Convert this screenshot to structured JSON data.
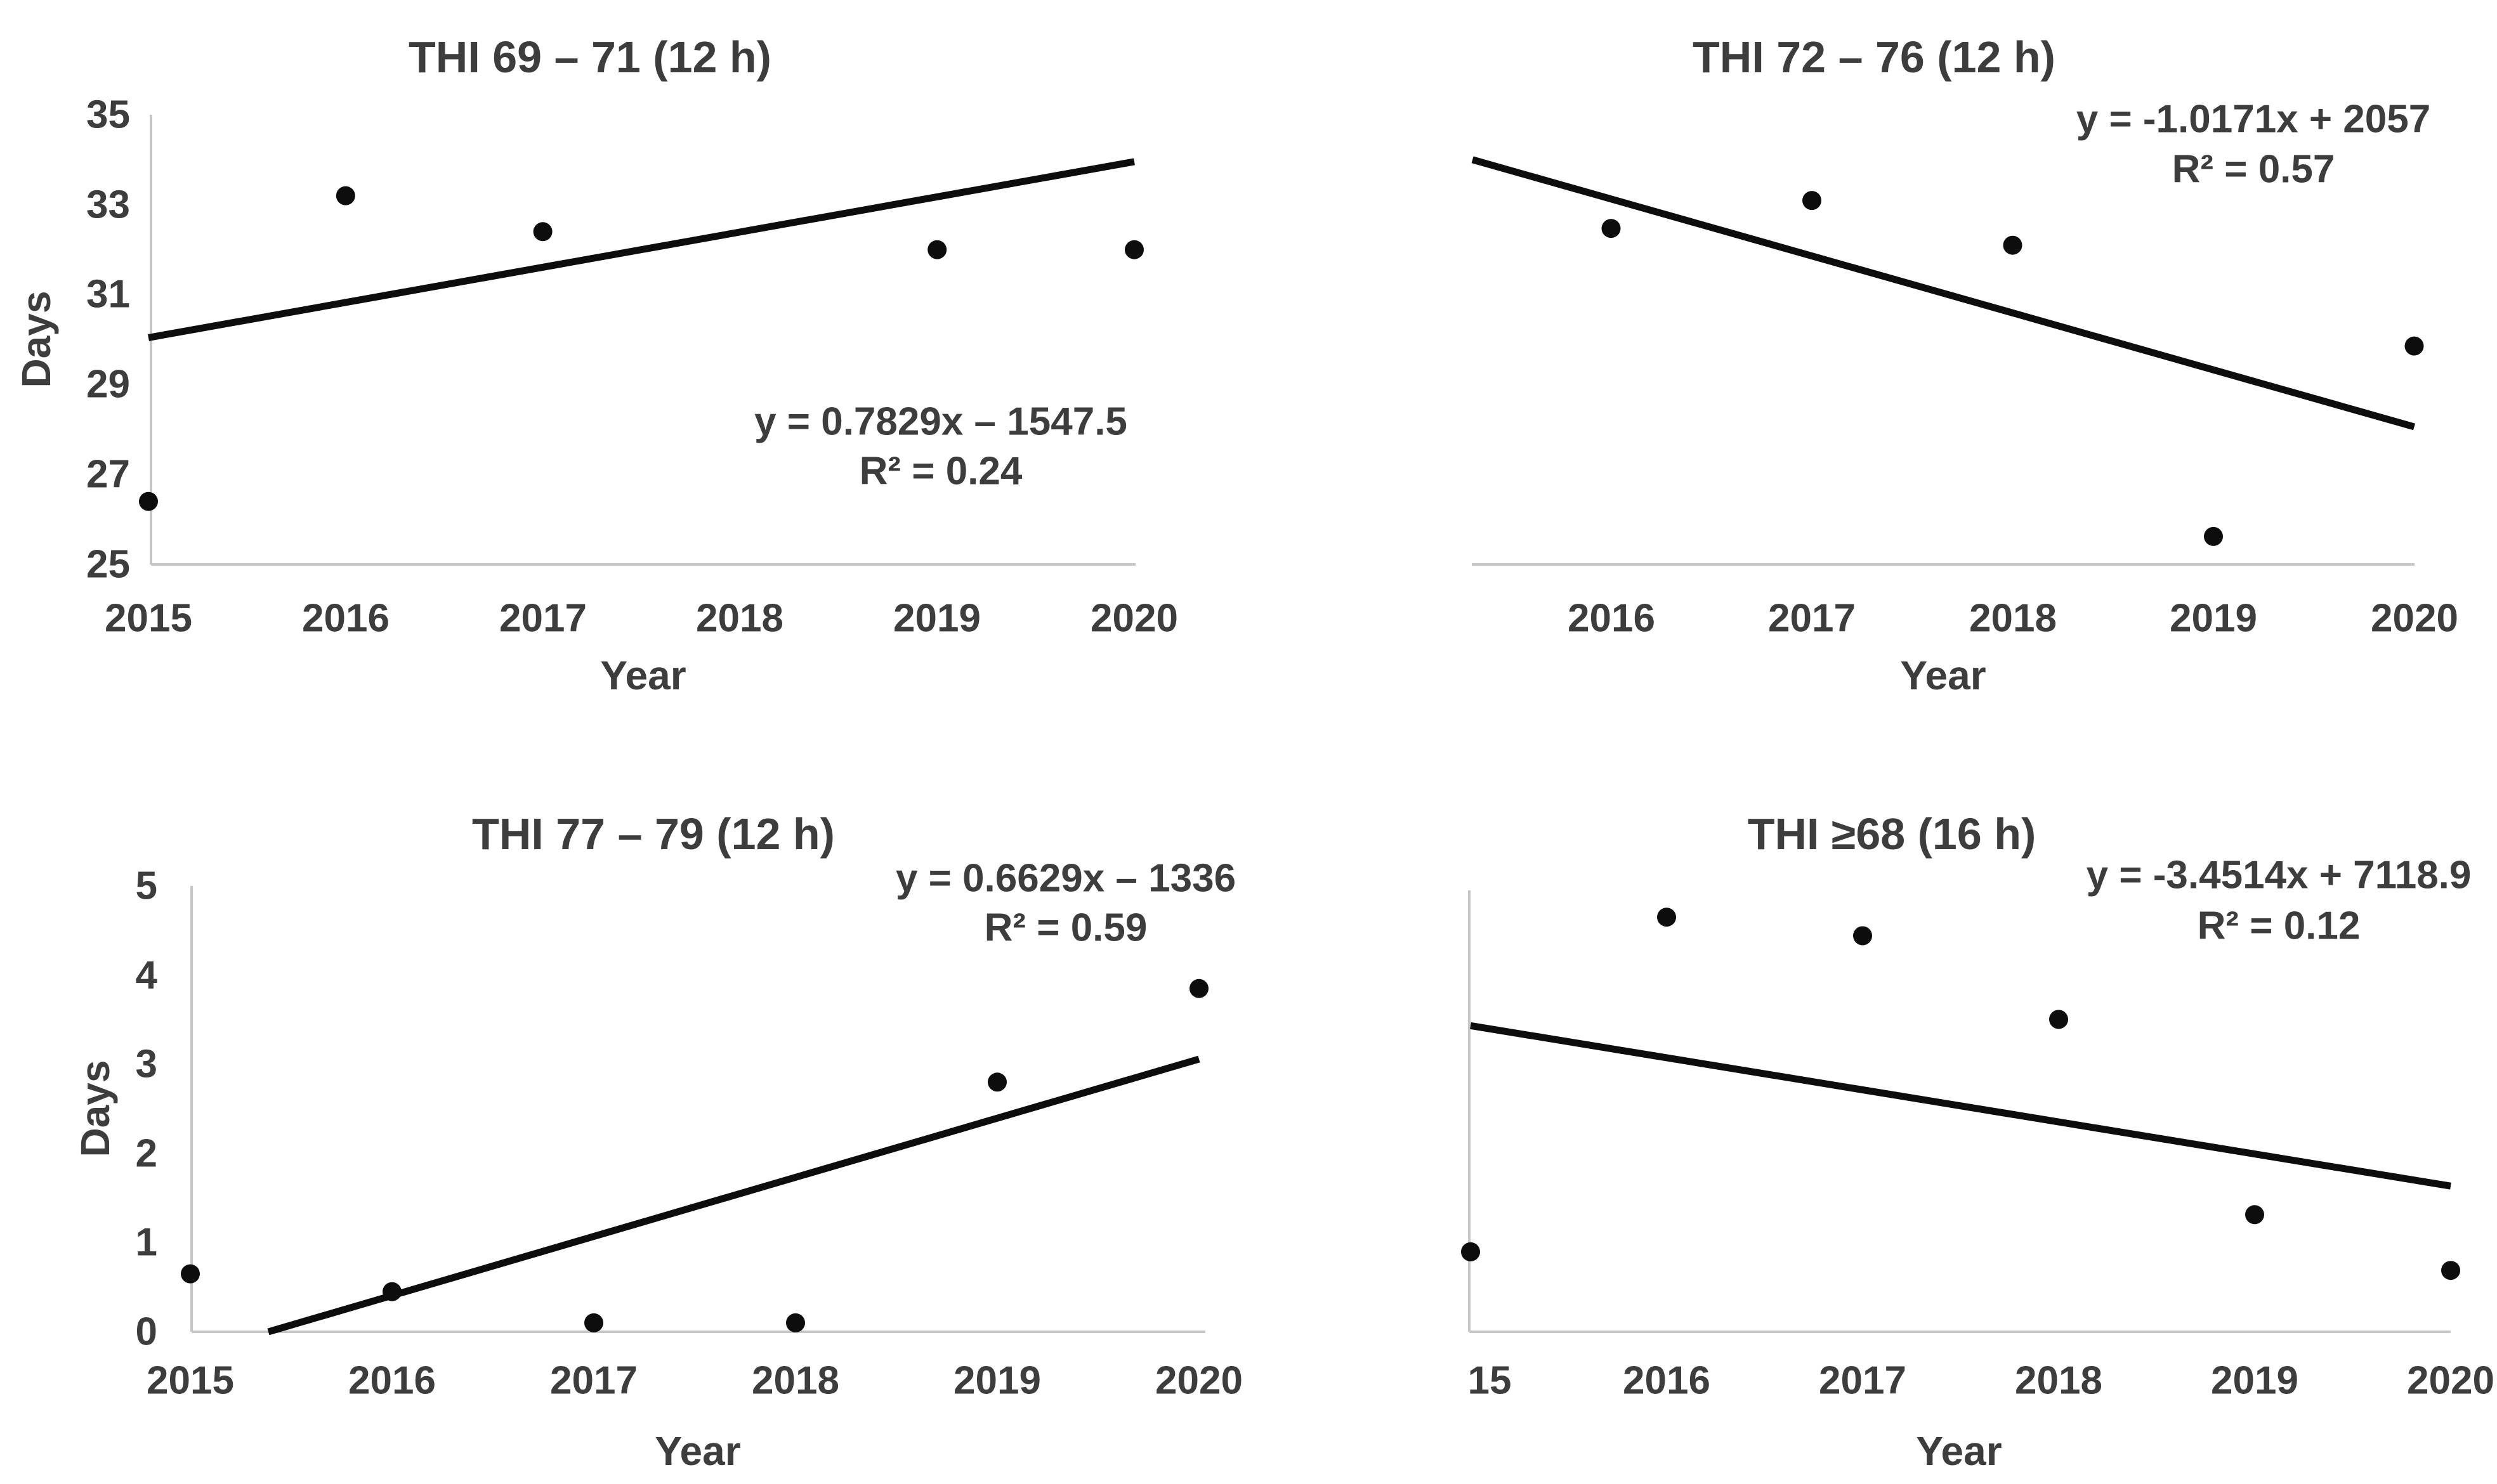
{
  "figure": {
    "background_color": "#ffffff",
    "text_color": "#3d3d3d",
    "axis_line_color": "#c6c6c6",
    "marker_color": "#0d0d0d",
    "trendline_color": "#0d0d0d"
  },
  "chart_data": [
    {
      "type": "scatter",
      "title": "THI 69 – 71 (12 h)",
      "xlabel": "Year",
      "ylabel": "Days",
      "equation": {
        "line1": "y = 0.7829x – 1547.5",
        "line2": "R² = 0.24"
      },
      "x_ticks": [
        "2015",
        "2016",
        "2017",
        "2018",
        "2019",
        "2020"
      ],
      "y_ticks": [
        "25",
        "27",
        "29",
        "31",
        "33",
        "35"
      ],
      "xlim": [
        2015,
        2020
      ],
      "ylim": [
        25,
        35
      ],
      "grid": false,
      "y_axis_visible": true,
      "points": [
        {
          "x": 2015,
          "y": 26.4
        },
        {
          "x": 2016,
          "y": 33.2
        },
        {
          "x": 2017,
          "y": 32.4
        },
        {
          "x": 2019,
          "y": 32.0
        },
        {
          "x": 2020,
          "y": 32.0
        }
      ],
      "trend": {
        "slope": 0.7829,
        "intercept": -1547.5,
        "x_start": 2015,
        "x_end": 2020
      }
    },
    {
      "type": "scatter",
      "title": "THI 72 – 76 (12 h)",
      "xlabel": "Year",
      "ylabel": null,
      "equation": {
        "line1": "y = -1.0171x + 2057",
        "line2": "R² = 0.57"
      },
      "x_ticks": [
        "2016",
        "2017",
        "2018",
        "2019",
        "2020"
      ],
      "y_ticks": [],
      "xlim": [
        2015.31,
        2020
      ],
      "ylim": [
        0,
        10
      ],
      "grid": false,
      "y_axis_visible": false,
      "y_axis_cropped": true,
      "points": [
        {
          "x": 2016,
          "y": 6.0
        },
        {
          "x": 2017,
          "y": 6.5
        },
        {
          "x": 2018,
          "y": 5.7
        },
        {
          "x": 2019,
          "y": 0.5
        },
        {
          "x": 2020,
          "y": 3.9
        }
      ],
      "trend": {
        "slope": -1.0171,
        "intercept": 2057,
        "x_start": 2015.31,
        "x_end": 2020
      }
    },
    {
      "type": "scatter",
      "title": "THI 77 – 79 (12 h)",
      "xlabel": "Year",
      "ylabel": "Days",
      "equation": {
        "line1": "y = 0.6629x – 1336",
        "line2": "R² = 0.59"
      },
      "x_ticks": [
        "2015",
        "2016",
        "2017",
        "2018",
        "2019",
        "2020"
      ],
      "y_ticks": [
        "0",
        "1",
        "2",
        "3",
        "4",
        "5"
      ],
      "xlim": [
        2015,
        2020
      ],
      "ylim": [
        0,
        5
      ],
      "grid": false,
      "y_axis_visible": true,
      "points": [
        {
          "x": 2015,
          "y": 0.65
        },
        {
          "x": 2016,
          "y": 0.45
        },
        {
          "x": 2017,
          "y": 0.1
        },
        {
          "x": 2018,
          "y": 0.1
        },
        {
          "x": 2019,
          "y": 2.8
        },
        {
          "x": 2020,
          "y": 3.85
        }
      ],
      "trend": {
        "slope": 0.6629,
        "intercept": -1336,
        "x_start": 2015,
        "x_end": 2020
      }
    },
    {
      "type": "scatter",
      "title": "THI ≥68 (16 h)",
      "xlabel": "Year",
      "ylabel": null,
      "equation": {
        "line1": "y = -3.4514x + 7118.9",
        "line2": "R² = 0.12"
      },
      "x_ticks": [
        "15",
        "2016",
        "2017",
        "2018",
        "2019",
        "2020"
      ],
      "y_ticks": [],
      "xlim": [
        2015,
        2020
      ],
      "ylim": [
        131.4,
        179
      ],
      "grid": false,
      "y_axis_visible": true,
      "y_axis_cropped": true,
      "points": [
        {
          "x": 2015,
          "y": 140
        },
        {
          "x": 2016,
          "y": 176
        },
        {
          "x": 2017,
          "y": 174
        },
        {
          "x": 2018,
          "y": 165
        },
        {
          "x": 2019,
          "y": 144
        },
        {
          "x": 2020,
          "y": 138
        }
      ],
      "trend": {
        "slope": -3.4514,
        "intercept": 7118.9,
        "x_start": 2015,
        "x_end": 2020
      }
    }
  ]
}
